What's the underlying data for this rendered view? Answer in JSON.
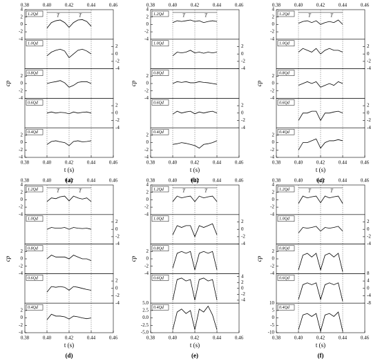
{
  "chart_data": [
    {
      "type": "line",
      "panel_label": "(a)",
      "xlabel": "t (s)",
      "ylabel": "cp",
      "annotations": [
        "T",
        "T"
      ],
      "xlim": [
        0.38,
        0.46
      ],
      "xticks": [
        0.38,
        {
          "value": 0.4,
          "label": "0.40"
        },
        0.42,
        0.44,
        0.46
      ],
      "vlines": [
        0.4,
        0.42,
        0.44
      ],
      "x": [
        0.4,
        0.404,
        0.408,
        0.412,
        0.416,
        0.42,
        0.424,
        0.428,
        0.432,
        0.436,
        0.44
      ],
      "series": [
        {
          "name": "1.2Qd",
          "color": "#000",
          "ylim": [
            -4,
            4
          ],
          "yticks": [
            -4,
            -2,
            0,
            2,
            4
          ],
          "values": [
            -1,
            0.5,
            1,
            1.2,
            0.5,
            -0.8,
            0.5,
            1.2,
            1.3,
            0.8,
            -0.5
          ]
        },
        {
          "name": "1.0Qd",
          "color": "#000",
          "ylim": [
            -4,
            4
          ],
          "yticks": [
            -4,
            -2,
            0,
            2
          ],
          "values": [
            -0.5,
            0.5,
            1,
            1.3,
            0.8,
            -1,
            0,
            1,
            1.3,
            0.8,
            0
          ]
        },
        {
          "name": "0.8Qd",
          "color": "#000",
          "ylim": [
            -4,
            4
          ],
          "yticks": [
            -4,
            -2,
            0,
            2
          ],
          "values": [
            0,
            0.3,
            0.5,
            0.8,
            0.2,
            -1,
            -0.5,
            0.3,
            0.5,
            0.5,
            0
          ]
        },
        {
          "name": "0.6Qd",
          "color": "#000",
          "ylim": [
            -4,
            4
          ],
          "yticks": [
            -4,
            -2,
            0,
            2
          ],
          "values": [
            0,
            0.3,
            0,
            0.2,
            0.1,
            -0.2,
            0.3,
            0,
            0.2,
            0.3,
            0
          ]
        },
        {
          "name": "0.4Qd",
          "color": "#000",
          "ylim": [
            -4,
            4
          ],
          "yticks": [
            -4,
            -2,
            0,
            2
          ],
          "values": [
            -0.5,
            0.3,
            0.5,
            0.2,
            0,
            -0.8,
            0.3,
            0.5,
            0.2,
            0.3,
            0.5
          ]
        }
      ]
    },
    {
      "type": "line",
      "panel_label": "(b)",
      "xlabel": "t (s)",
      "ylabel": "cp",
      "annotations": [
        "T",
        "T"
      ],
      "xlim": [
        0.38,
        0.46
      ],
      "xticks": [
        0.38,
        {
          "value": 0.4,
          "label": "0.40"
        },
        0.42,
        0.44,
        0.46
      ],
      "vlines": [
        0.4,
        0.42,
        0.44
      ],
      "x": [
        0.4,
        0.404,
        0.408,
        0.412,
        0.416,
        0.42,
        0.424,
        0.428,
        0.432,
        0.436,
        0.44
      ],
      "series": [
        {
          "name": "1.2Qd",
          "color": "#000",
          "ylim": [
            -4,
            4
          ],
          "yticks": [
            -4,
            -2,
            0,
            2,
            4
          ],
          "values": [
            0.5,
            1,
            0.8,
            1,
            1.2,
            0.8,
            1,
            0.5,
            0.8,
            1,
            0.8
          ]
        },
        {
          "name": "1.0Qd",
          "color": "#000",
          "ylim": [
            -4,
            4
          ],
          "yticks": [
            -4,
            -2,
            0,
            2
          ],
          "values": [
            -0.5,
            0.5,
            0.3,
            0.5,
            1,
            0.3,
            0.5,
            0.2,
            0.5,
            0.3,
            0.5
          ]
        },
        {
          "name": "0.8Qd",
          "color": "#000",
          "ylim": [
            -4,
            4
          ],
          "yticks": [
            -4,
            -2,
            0,
            2
          ],
          "values": [
            0,
            0.5,
            0.3,
            0.5,
            0.2,
            0.2,
            0.5,
            0.3,
            0.2,
            0,
            -0.2
          ]
        },
        {
          "name": "0.6Qd",
          "color": "#000",
          "ylim": [
            -4,
            4
          ],
          "yticks": [
            -4,
            -2,
            0,
            2
          ],
          "values": [
            -0.3,
            0.5,
            0,
            0.3,
            0.5,
            -0.2,
            0.3,
            0,
            0.3,
            0.5,
            0
          ]
        },
        {
          "name": "0.4Qd",
          "color": "#000",
          "ylim": [
            -4,
            4
          ],
          "yticks": [
            -4,
            -2,
            0,
            2
          ],
          "values": [
            -0.5,
            -0.3,
            0,
            -0.2,
            -0.5,
            -0.8,
            -1.5,
            -0.5,
            -0.3,
            0,
            0.5
          ]
        }
      ]
    },
    {
      "type": "line",
      "panel_label": "(c)",
      "xlabel": "t (s)",
      "ylabel": "cp",
      "annotations": [
        "T",
        "T"
      ],
      "xlim": [
        0.38,
        0.46
      ],
      "xticks": [
        0.38,
        {
          "value": 0.4,
          "label": "0.40"
        },
        0.42,
        0.44,
        0.46
      ],
      "vlines": [
        0.4,
        0.42,
        0.44
      ],
      "x": [
        0.4,
        0.404,
        0.408,
        0.412,
        0.416,
        0.42,
        0.424,
        0.428,
        0.432,
        0.436,
        0.44
      ],
      "series": [
        {
          "name": "1.2Qd",
          "color": "#000",
          "ylim": [
            -4,
            4
          ],
          "yticks": [
            -4,
            -2,
            0,
            2,
            4
          ],
          "values": [
            0.3,
            0.8,
            1,
            0.5,
            1,
            0,
            0.5,
            0.8,
            0.5,
            1.2,
            0
          ]
        },
        {
          "name": "1.0Qd",
          "color": "#000",
          "ylim": [
            -4,
            4
          ],
          "yticks": [
            -4,
            -2,
            0,
            2
          ],
          "values": [
            0.5,
            1.5,
            1,
            0.5,
            1.5,
            0,
            1,
            1.5,
            1,
            1,
            0.5
          ]
        },
        {
          "name": "0.8Qd",
          "color": "#000",
          "ylim": [
            -4,
            4
          ],
          "yticks": [
            -4,
            -2,
            0,
            2
          ],
          "values": [
            -0.5,
            0,
            0.5,
            0,
            0.5,
            -1,
            -0.5,
            0,
            -0.5,
            0.5,
            0
          ]
        },
        {
          "name": "0.6Qd",
          "color": "#000",
          "ylim": [
            -4,
            4
          ],
          "yticks": [
            -4,
            -2,
            0,
            2
          ],
          "values": [
            -2,
            0,
            0,
            0.5,
            0.5,
            -2,
            0,
            0,
            0.3,
            0.5,
            0
          ]
        },
        {
          "name": "0.4Qd",
          "color": "#000",
          "ylim": [
            -4,
            4
          ],
          "yticks": [
            -4,
            -2,
            0,
            2
          ],
          "values": [
            -2,
            0,
            0,
            0.5,
            1,
            -1.5,
            0,
            0.5,
            0.5,
            0.8,
            0.5
          ]
        }
      ]
    },
    {
      "type": "line",
      "panel_label": "(d)",
      "xlabel": "t (s)",
      "ylabel": "cp",
      "annotations": [
        "T",
        "T"
      ],
      "xlim": [
        0.38,
        0.46
      ],
      "xticks": [
        0.38,
        {
          "value": 0.4,
          "label": "0.40"
        },
        0.42,
        0.44,
        0.46
      ],
      "vlines": [
        0.4,
        0.42,
        0.44
      ],
      "x": [
        0.4,
        0.404,
        0.408,
        0.412,
        0.416,
        0.42,
        0.424,
        0.428,
        0.432,
        0.436,
        0.44
      ],
      "series": [
        {
          "name": "1.2Qd",
          "color": "#000",
          "ylim": [
            -4,
            4
          ],
          "yticks": [
            -4,
            -2,
            0,
            2,
            4
          ],
          "values": [
            -0.5,
            0.5,
            0.3,
            0.8,
            1,
            -0.3,
            1,
            0.5,
            0.2,
            0.5,
            -0.5
          ]
        },
        {
          "name": "1.0Qd",
          "color": "#000",
          "ylim": [
            -4,
            4
          ],
          "yticks": [
            -4,
            -2,
            0,
            2
          ],
          "values": [
            0,
            0.5,
            0.3,
            0.3,
            0.5,
            0,
            0.5,
            0.3,
            0.2,
            0.3,
            0
          ]
        },
        {
          "name": "0.8Qd",
          "color": "#000",
          "ylim": [
            -4,
            4
          ],
          "yticks": [
            -4,
            -2,
            0,
            2
          ],
          "values": [
            0,
            1,
            0.5,
            0.5,
            0.5,
            0,
            1,
            0.5,
            0,
            0,
            -0.5
          ]
        },
        {
          "name": "0.6Qd",
          "color": "#000",
          "ylim": [
            -4,
            4
          ],
          "yticks": [
            -4,
            -2,
            0,
            2
          ],
          "values": [
            -1,
            0.5,
            0.3,
            0.5,
            0.3,
            -0.5,
            0.5,
            0.3,
            0,
            -0.3,
            -0.5
          ]
        },
        {
          "name": "0.4Qd",
          "color": "#000",
          "ylim": [
            -4,
            4
          ],
          "yticks": [
            -4,
            -2,
            0,
            2
          ],
          "values": [
            -0.5,
            1,
            0.5,
            0.5,
            0.3,
            -0.3,
            0.5,
            0.3,
            0,
            -0.2,
            0
          ]
        }
      ]
    },
    {
      "type": "line",
      "panel_label": "(e)",
      "xlabel": "t (s)",
      "ylabel": "cp",
      "annotations": [
        "T",
        "T"
      ],
      "xlim": [
        0.38,
        0.46
      ],
      "xticks": [
        0.38,
        {
          "value": 0.4,
          "label": "0.40"
        },
        0.42,
        0.44,
        0.46
      ],
      "vlines": [
        0.4,
        0.42,
        0.44
      ],
      "x": [
        0.4,
        0.404,
        0.408,
        0.412,
        0.416,
        0.42,
        0.424,
        0.428,
        0.432,
        0.436,
        0.44
      ],
      "series": [
        {
          "name": "1.2Qd",
          "color": "#000",
          "ylim": [
            -4,
            4
          ],
          "yticks": [
            -4,
            -2,
            0,
            2,
            4
          ],
          "values": [
            -0.5,
            1,
            0.5,
            0.8,
            1,
            -0.5,
            1,
            0.5,
            0.8,
            1,
            -0.5
          ]
        },
        {
          "name": "1.0Qd",
          "color": "#000",
          "ylim": [
            -4,
            4
          ],
          "yticks": [
            -4,
            -2,
            0,
            2
          ],
          "values": [
            -1.5,
            1,
            0.5,
            1,
            1,
            -2,
            1,
            0.5,
            1,
            1.5,
            -1.5
          ]
        },
        {
          "name": "0.8Qd",
          "color": "#000",
          "ylim": [
            -4,
            4
          ],
          "yticks": [
            -4,
            -2,
            0,
            2
          ],
          "values": [
            -2.5,
            1.5,
            2,
            1.5,
            2,
            -3,
            1.5,
            2,
            1.5,
            2,
            -3
          ]
        },
        {
          "name": "0.6Qd",
          "color": "#000",
          "ylim": [
            -5,
            5
          ],
          "yticks": [
            -4,
            -2,
            0,
            2,
            4
          ],
          "values": [
            -4,
            3,
            3.5,
            2.5,
            3,
            -4,
            3,
            3.5,
            2.5,
            3,
            -4
          ]
        },
        {
          "name": "0.4Qd",
          "color": "#000",
          "ylim": [
            -5,
            5
          ],
          "yticks": [
            {
              "value": -5,
              "label": "-5.0"
            },
            -2.5,
            {
              "value": 0,
              "label": "0.0"
            },
            2.5,
            {
              "value": 5,
              "label": "5.0"
            }
          ],
          "values": [
            -4,
            2,
            3,
            1.5,
            2.5,
            -4,
            3,
            2,
            4,
            1,
            -4
          ]
        }
      ]
    },
    {
      "type": "line",
      "panel_label": "(f)",
      "xlabel": "t (s)",
      "ylabel": "cp",
      "annotations": [
        "T",
        "T"
      ],
      "xlim": [
        0.38,
        0.46
      ],
      "xticks": [
        0.38,
        {
          "value": 0.4,
          "label": "0.40"
        },
        0.42,
        0.44,
        0.46
      ],
      "vlines": [
        0.4,
        0.42,
        0.44
      ],
      "x": [
        0.4,
        0.404,
        0.408,
        0.412,
        0.416,
        0.42,
        0.424,
        0.428,
        0.432,
        0.436,
        0.44
      ],
      "series": [
        {
          "name": "1.2Qd",
          "color": "#000",
          "ylim": [
            -4,
            4
          ],
          "yticks": [
            -4,
            -2,
            0,
            2,
            4
          ],
          "values": [
            -1,
            1,
            0.5,
            0.8,
            1,
            -0.8,
            1,
            0.5,
            0.8,
            1,
            -1
          ]
        },
        {
          "name": "1.0Qd",
          "color": "#000",
          "ylim": [
            -4,
            4
          ],
          "yticks": [
            -4,
            -2,
            0,
            2
          ],
          "values": [
            -1,
            0.5,
            0.3,
            0.5,
            0.8,
            -0.5,
            0.5,
            0.3,
            0.5,
            0.8,
            -0.5
          ]
        },
        {
          "name": "0.8Qd",
          "color": "#000",
          "ylim": [
            -4,
            4
          ],
          "yticks": [
            -4,
            -2,
            0,
            2
          ],
          "values": [
            -3,
            1,
            1.5,
            0.5,
            1.5,
            -3,
            1,
            1.5,
            0.5,
            1.5,
            -3.5
          ]
        },
        {
          "name": "0.6Qd",
          "color": "#000",
          "ylim": [
            -8,
            8
          ],
          "yticks": [
            -8,
            -4,
            0,
            4,
            8
          ],
          "values": [
            -6,
            2,
            3,
            2,
            3,
            -6,
            2,
            3,
            2,
            3,
            -7
          ]
        },
        {
          "name": "0.4Qd",
          "color": "#000",
          "ylim": [
            -10,
            10
          ],
          "yticks": [
            -10,
            -5,
            0,
            5,
            10
          ],
          "values": [
            -8,
            2,
            3,
            1,
            3,
            -9,
            2,
            3,
            1,
            4,
            -9
          ]
        }
      ]
    }
  ]
}
